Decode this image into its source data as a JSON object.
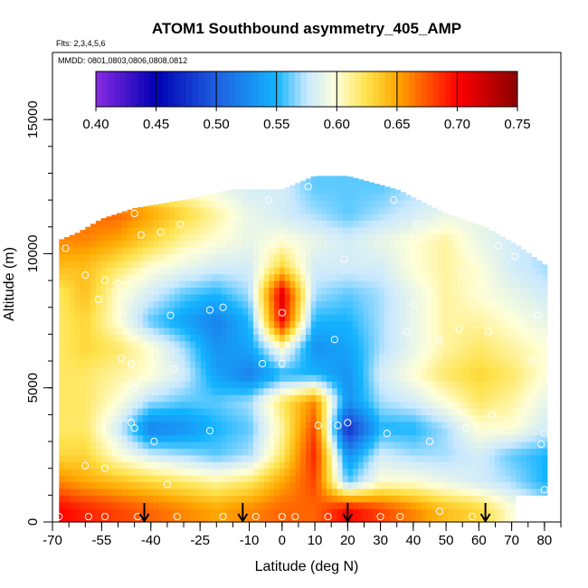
{
  "chart_data": {
    "type": "heatmap",
    "title": "ATOM1 Southbound asymmetry_405_AMP",
    "flights_note": "Flts: 2,3,4,5,6",
    "dates_note": "MMDD: 0801,0803,0806,0808,0812",
    "xlabel": "Latitude (deg N)",
    "ylabel": "Altitude (m)",
    "xlim": [
      -70,
      85
    ],
    "ylim": [
      0,
      17500
    ],
    "x_ticks": [
      -70,
      -55,
      -40,
      -25,
      -10,
      0,
      10,
      20,
      30,
      40,
      50,
      60,
      70,
      80
    ],
    "x_tick_labels": [
      "-70",
      "-55",
      "-40",
      "-25",
      "-10",
      "0",
      "10",
      "20",
      "30",
      "40",
      "50",
      "60",
      "70",
      "80"
    ],
    "y_ticks": [
      0,
      5000,
      10000,
      15000
    ],
    "y_tick_labels": [
      "0",
      "5000",
      "10000",
      "15000"
    ],
    "colorbar": {
      "min": 0.4,
      "max": 0.75,
      "ticks": [
        0.4,
        0.45,
        0.5,
        0.55,
        0.6,
        0.65,
        0.7,
        0.75
      ],
      "tick_labels": [
        "0.40",
        "0.45",
        "0.50",
        "0.55",
        "0.60",
        "0.65",
        "0.70",
        "0.75"
      ],
      "stops": [
        {
          "v": 0.4,
          "color": "#8a2be2"
        },
        {
          "v": 0.45,
          "color": "#0000b4"
        },
        {
          "v": 0.5,
          "color": "#1f5fe0"
        },
        {
          "v": 0.55,
          "color": "#14b4ff"
        },
        {
          "v": 0.575,
          "color": "#c8e8ff"
        },
        {
          "v": 0.6,
          "color": "#ffffd8"
        },
        {
          "v": 0.625,
          "color": "#ffe24a"
        },
        {
          "v": 0.65,
          "color": "#ffa800"
        },
        {
          "v": 0.7,
          "color": "#ff0000"
        },
        {
          "v": 0.75,
          "color": "#8a0000"
        }
      ]
    },
    "coverage": {
      "lat_min": -68,
      "lat_max": 80,
      "profile": [
        {
          "lat": -68,
          "top": 10500
        },
        {
          "lat": -62,
          "top": 10800
        },
        {
          "lat": -55,
          "top": 11300
        },
        {
          "lat": -45,
          "top": 11700
        },
        {
          "lat": -30,
          "top": 12000
        },
        {
          "lat": -15,
          "top": 12400
        },
        {
          "lat": 0,
          "top": 12400
        },
        {
          "lat": 10,
          "top": 12900
        },
        {
          "lat": 20,
          "top": 12900
        },
        {
          "lat": 35,
          "top": 12400
        },
        {
          "lat": 50,
          "top": 11500
        },
        {
          "lat": 62,
          "top": 11000
        },
        {
          "lat": 72,
          "top": 10300
        },
        {
          "lat": 80,
          "top": 9600
        }
      ],
      "right_bottom_lat": 72,
      "right_bottom_alt": 1000
    },
    "grid_values": {
      "latitudes": [
        -68,
        -60,
        -50,
        -40,
        -30,
        -20,
        -10,
        0,
        10,
        20,
        30,
        40,
        50,
        60,
        70,
        80
      ],
      "altitudes": [
        500,
        1500,
        2500,
        3500,
        4500,
        5500,
        6500,
        7500,
        8500,
        9500,
        10500,
        11500,
        12500
      ],
      "values": [
        [
          0.7,
          0.69,
          0.68,
          0.67,
          0.66,
          0.65,
          0.66,
          0.67,
          0.67,
          0.7,
          0.68,
          0.66,
          0.64,
          0.63,
          0.6,
          0.58
        ],
        [
          0.66,
          0.65,
          0.64,
          0.63,
          0.62,
          0.61,
          0.62,
          0.65,
          0.68,
          0.56,
          0.6,
          0.6,
          0.59,
          0.58,
          0.57,
          0.55
        ],
        [
          0.63,
          0.63,
          0.6,
          0.58,
          0.57,
          0.56,
          0.57,
          0.62,
          0.69,
          0.53,
          0.58,
          0.57,
          0.57,
          0.58,
          0.56,
          0.55
        ],
        [
          0.62,
          0.62,
          0.58,
          0.52,
          0.53,
          0.55,
          0.56,
          0.61,
          0.68,
          0.47,
          0.55,
          0.55,
          0.57,
          0.6,
          0.6,
          0.58
        ],
        [
          0.62,
          0.62,
          0.6,
          0.57,
          0.56,
          0.56,
          0.57,
          0.62,
          0.66,
          0.53,
          0.57,
          0.58,
          0.6,
          0.62,
          0.61,
          0.59
        ],
        [
          0.62,
          0.62,
          0.61,
          0.6,
          0.58,
          0.54,
          0.52,
          0.55,
          0.55,
          0.53,
          0.58,
          0.6,
          0.62,
          0.63,
          0.62,
          0.6
        ],
        [
          0.62,
          0.63,
          0.62,
          0.6,
          0.57,
          0.53,
          0.54,
          0.6,
          0.53,
          0.54,
          0.57,
          0.59,
          0.61,
          0.62,
          0.61,
          0.6
        ],
        [
          0.62,
          0.63,
          0.6,
          0.56,
          0.54,
          0.52,
          0.55,
          0.7,
          0.55,
          0.55,
          0.57,
          0.59,
          0.61,
          0.61,
          0.6,
          0.59
        ],
        [
          0.62,
          0.64,
          0.6,
          0.58,
          0.56,
          0.55,
          0.57,
          0.71,
          0.57,
          0.56,
          0.57,
          0.59,
          0.61,
          0.6,
          0.59,
          0.58
        ],
        [
          0.64,
          0.64,
          0.62,
          0.6,
          0.59,
          0.58,
          0.58,
          0.63,
          0.58,
          0.58,
          0.58,
          0.6,
          0.61,
          0.6,
          0.58,
          0.57
        ],
        [
          0.66,
          0.66,
          0.65,
          0.63,
          0.61,
          0.6,
          0.59,
          0.6,
          0.59,
          0.58,
          0.59,
          0.6,
          0.61,
          0.59,
          0.58,
          0.57
        ],
        [
          0.66,
          0.67,
          0.67,
          0.65,
          0.63,
          0.61,
          0.59,
          0.58,
          0.57,
          0.56,
          0.57,
          0.58,
          0.59,
          0.59,
          0.58,
          0.57
        ],
        [
          0.62,
          0.62,
          0.62,
          0.62,
          0.6,
          0.59,
          0.58,
          0.58,
          0.56,
          0.56,
          0.56,
          0.57,
          0.58,
          0.58,
          0.58,
          0.57
        ]
      ]
    },
    "profile_arrows_lat": [
      -42,
      -12,
      20,
      62
    ],
    "sample_points": [
      {
        "lat": -66,
        "alt": 10200
      },
      {
        "lat": -60,
        "alt": 9200
      },
      {
        "lat": -56,
        "alt": 8300
      },
      {
        "lat": -54,
        "alt": 9000
      },
      {
        "lat": -50,
        "alt": 8900
      },
      {
        "lat": -47,
        "alt": 9000
      },
      {
        "lat": -45,
        "alt": 11500
      },
      {
        "lat": -43,
        "alt": 10700
      },
      {
        "lat": -37,
        "alt": 10800
      },
      {
        "lat": -31,
        "alt": 11100
      },
      {
        "lat": -34,
        "alt": 7700
      },
      {
        "lat": -22,
        "alt": 7900
      },
      {
        "lat": -49,
        "alt": 6100
      },
      {
        "lat": -46,
        "alt": 5900
      },
      {
        "lat": -45,
        "alt": 5000
      },
      {
        "lat": -33,
        "alt": 5700
      },
      {
        "lat": -18,
        "alt": 8000
      },
      {
        "lat": -6,
        "alt": 5900
      },
      {
        "lat": 0,
        "alt": 7800
      },
      {
        "lat": 6,
        "alt": 7300
      },
      {
        "lat": 0,
        "alt": 5900
      },
      {
        "lat": -4,
        "alt": 12000
      },
      {
        "lat": 8,
        "alt": 12500
      },
      {
        "lat": 16,
        "alt": 6800
      },
      {
        "lat": 17,
        "alt": 3600
      },
      {
        "lat": 20,
        "alt": 3700
      },
      {
        "lat": 11,
        "alt": 3600
      },
      {
        "lat": 19,
        "alt": 9800
      },
      {
        "lat": 34,
        "alt": 12000
      },
      {
        "lat": 40,
        "alt": 8100
      },
      {
        "lat": 38,
        "alt": 7100
      },
      {
        "lat": 41,
        "alt": 11100
      },
      {
        "lat": 48,
        "alt": 6800
      },
      {
        "lat": 54,
        "alt": 7200
      },
      {
        "lat": 55,
        "alt": 9300
      },
      {
        "lat": 63,
        "alt": 7100
      },
      {
        "lat": 66,
        "alt": 10300
      },
      {
        "lat": 71,
        "alt": 9900
      },
      {
        "lat": 78,
        "alt": 7700
      },
      {
        "lat": 76,
        "alt": 6000
      },
      {
        "lat": 64,
        "alt": 4000
      },
      {
        "lat": 56,
        "alt": 3500
      },
      {
        "lat": 45,
        "alt": 3000
      },
      {
        "lat": 32,
        "alt": 3300
      },
      {
        "lat": -46,
        "alt": 3700
      },
      {
        "lat": -45,
        "alt": 3500
      },
      {
        "lat": -39,
        "alt": 3000
      },
      {
        "lat": -22,
        "alt": 3400
      },
      {
        "lat": -60,
        "alt": 2100
      },
      {
        "lat": -54,
        "alt": 2000
      },
      {
        "lat": -35,
        "alt": 1400
      },
      {
        "lat": -68,
        "alt": 200
      },
      {
        "lat": -59,
        "alt": 200
      },
      {
        "lat": -54,
        "alt": 200
      },
      {
        "lat": -44,
        "alt": 200
      },
      {
        "lat": -32,
        "alt": 200
      },
      {
        "lat": -18,
        "alt": 200
      },
      {
        "lat": -8,
        "alt": 200
      },
      {
        "lat": 0,
        "alt": 200
      },
      {
        "lat": 4,
        "alt": 200
      },
      {
        "lat": 14,
        "alt": 200
      },
      {
        "lat": 30,
        "alt": 200
      },
      {
        "lat": 36,
        "alt": 200
      },
      {
        "lat": 48,
        "alt": 400
      },
      {
        "lat": 58,
        "alt": 200
      },
      {
        "lat": 80,
        "alt": 1200
      },
      {
        "lat": 80,
        "alt": 3300
      },
      {
        "lat": 79,
        "alt": 2900
      }
    ]
  }
}
